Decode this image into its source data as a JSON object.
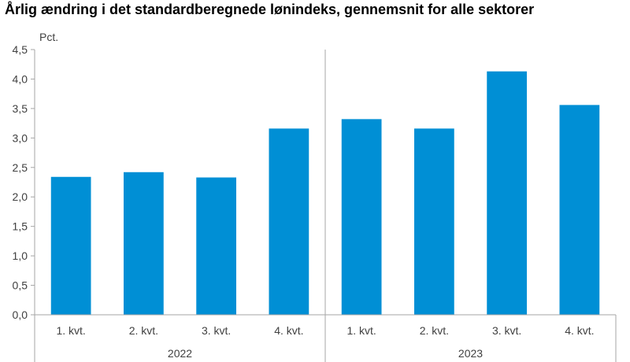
{
  "chart_data": {
    "type": "bar",
    "title": "Årlig ændring i det standardberegnede lønindeks, gennemsnit for alle sektorer",
    "ylabel": "Pct.",
    "xlabel": "",
    "ylim": [
      0,
      4.5
    ],
    "yticks": [
      "0,0",
      "0,5",
      "1,0",
      "1,5",
      "2,0",
      "2,5",
      "3,0",
      "3,5",
      "4,0",
      "4,5"
    ],
    "grid": false,
    "legend": "none",
    "categories": [
      "1. kvt.",
      "2. kvt.",
      "3. kvt.",
      "4. kvt.",
      "1. kvt.",
      "2. kvt.",
      "3. kvt.",
      "4. kvt."
    ],
    "groups": [
      {
        "label": "2022",
        "count": 4
      },
      {
        "label": "2023",
        "count": 4
      }
    ],
    "series": [
      {
        "values": [
          2.34,
          2.42,
          2.33,
          3.16,
          3.32,
          3.16,
          4.13,
          3.56
        ]
      }
    ],
    "colors": {
      "bar": "#008fd5",
      "axis": "#a6a6a6",
      "text": "#404040"
    }
  }
}
